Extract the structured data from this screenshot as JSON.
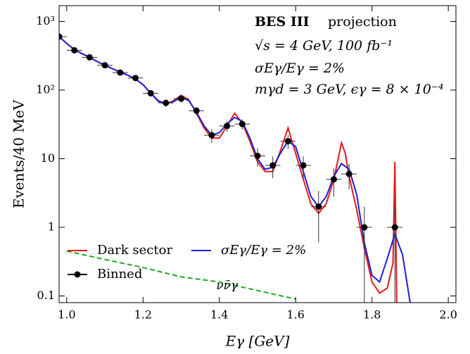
{
  "chart_data": {
    "type": "line",
    "y_scale": "log",
    "xlabel": "Eγ [GeV]",
    "ylabel": "Events/40 MeV",
    "xlim": [
      0.98,
      2.02
    ],
    "ylim": [
      0.08,
      1700
    ],
    "xticks": [
      {
        "value": 1.0,
        "label": "1.0"
      },
      {
        "value": 1.2,
        "label": "1.2"
      },
      {
        "value": 1.4,
        "label": "1.4"
      },
      {
        "value": 1.6,
        "label": "1.6"
      },
      {
        "value": 1.8,
        "label": "1.8"
      },
      {
        "value": 2.0,
        "label": "2.0"
      }
    ],
    "yticks": [
      0.1,
      1,
      10,
      {
        "value": 100,
        "label": "10²"
      },
      {
        "value": 1000,
        "label": "10³"
      }
    ],
    "annotations": [
      "BES III",
      "projection",
      "√s = 4 GeV,  100 fb⁻¹",
      "σEγ/Eγ = 2%",
      "mγd = 3 GeV,  ϵγ = 8 × 10⁻⁴"
    ],
    "legend": "lower left",
    "series": [
      {
        "name": "Dark sector",
        "kind": "line",
        "color": "#e41a1c",
        "x": [
          0.98,
          1.0,
          1.02,
          1.04,
          1.06,
          1.08,
          1.1,
          1.12,
          1.14,
          1.16,
          1.18,
          1.2,
          1.22,
          1.24,
          1.26,
          1.28,
          1.3,
          1.32,
          1.34,
          1.36,
          1.38,
          1.4,
          1.42,
          1.44,
          1.46,
          1.48,
          1.5,
          1.52,
          1.54,
          1.56,
          1.58,
          1.6,
          1.62,
          1.64,
          1.66,
          1.68,
          1.7,
          1.72,
          1.73,
          1.74,
          1.76,
          1.78,
          1.8,
          1.82,
          1.84,
          1.855,
          1.86,
          1.865
        ],
        "values": [
          600,
          480,
          390,
          340,
          300,
          260,
          230,
          205,
          182,
          165,
          145,
          120,
          90,
          68,
          62,
          70,
          84,
          72,
          46,
          28,
          20,
          20,
          30,
          46,
          33,
          18,
          9,
          6.5,
          6.5,
          13,
          28,
          12,
          5,
          2.2,
          1.6,
          2.2,
          5,
          17,
          12,
          5.5,
          1.8,
          0.5,
          0.16,
          0.11,
          0.13,
          0.3,
          9,
          0.08
        ]
      },
      {
        "name": "σEγ/Eγ = 2%",
        "kind": "line",
        "color": "#1f1fd6",
        "x": [
          0.98,
          1.0,
          1.02,
          1.04,
          1.06,
          1.08,
          1.1,
          1.12,
          1.14,
          1.16,
          1.18,
          1.2,
          1.22,
          1.24,
          1.26,
          1.28,
          1.3,
          1.32,
          1.34,
          1.36,
          1.38,
          1.4,
          1.42,
          1.44,
          1.46,
          1.48,
          1.5,
          1.52,
          1.54,
          1.56,
          1.58,
          1.6,
          1.62,
          1.64,
          1.66,
          1.68,
          1.7,
          1.72,
          1.74,
          1.76,
          1.78,
          1.8,
          1.82,
          1.84,
          1.86,
          1.88,
          1.9
        ],
        "values": [
          600,
          480,
          390,
          340,
          300,
          260,
          230,
          205,
          182,
          165,
          145,
          120,
          90,
          70,
          63,
          68,
          78,
          70,
          48,
          30,
          22,
          24,
          32,
          40,
          35,
          20,
          10,
          7,
          7.5,
          12,
          18,
          15,
          6.5,
          2.8,
          2,
          2.8,
          5.5,
          8.5,
          7,
          3,
          0.6,
          0.2,
          0.16,
          0.35,
          0.8,
          0.4,
          0.08
        ]
      },
      {
        "name": "Binned",
        "kind": "points",
        "color": "#000000",
        "xerr": 0.02,
        "x": [
          0.98,
          1.02,
          1.06,
          1.1,
          1.14,
          1.18,
          1.22,
          1.26,
          1.3,
          1.34,
          1.38,
          1.42,
          1.46,
          1.5,
          1.54,
          1.58,
          1.62,
          1.66,
          1.7,
          1.74,
          1.78,
          1.86
        ],
        "values": [
          600,
          380,
          300,
          230,
          180,
          150,
          90,
          65,
          75,
          50,
          22,
          30,
          32,
          11,
          8,
          18,
          8,
          2,
          5,
          6,
          1,
          1
        ],
        "yerr": [
          25,
          20,
          17,
          15,
          13,
          12,
          10,
          8,
          9,
          7,
          5,
          5.5,
          5.5,
          3.3,
          2.8,
          4.2,
          2.8,
          1.4,
          2.2,
          2.4,
          1,
          1
        ]
      },
      {
        "name": "νν̄γ",
        "kind": "dashed",
        "color": "#22aa22",
        "x": [
          1.0,
          1.1,
          1.2,
          1.3,
          1.4,
          1.5,
          1.6
        ],
        "values": [
          0.45,
          0.34,
          0.26,
          0.19,
          0.16,
          0.12,
          0.09
        ]
      }
    ]
  }
}
